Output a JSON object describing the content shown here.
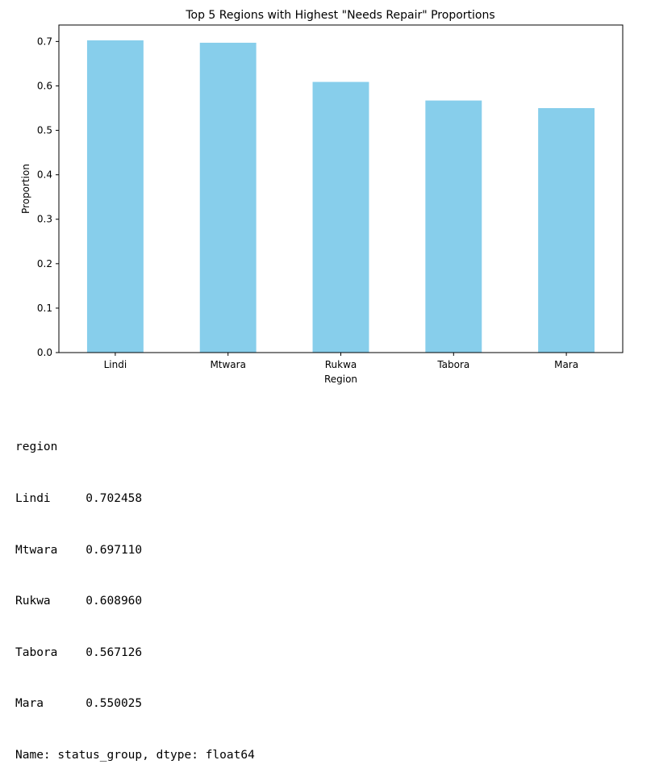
{
  "chart_data": {
    "type": "bar",
    "title": "Top 5 Regions with Highest \"Needs Repair\" Proportions",
    "xlabel": "Region",
    "ylabel": "Proportion",
    "categories": [
      "Lindi",
      "Mtwara",
      "Rukwa",
      "Tabora",
      "Mara"
    ],
    "values": [
      0.702458,
      0.69711,
      0.60896,
      0.567126,
      0.550025
    ],
    "ylim": [
      0,
      0.737
    ],
    "yticks": [
      "0.0",
      "0.1",
      "0.2",
      "0.3",
      "0.4",
      "0.5",
      "0.6",
      "0.7"
    ],
    "bar_color": "#87CEEB",
    "grid": false,
    "legend": "none"
  },
  "output": {
    "header": "region",
    "rows": [
      "Lindi     0.702458",
      "Mtwara    0.697110",
      "Rukwa     0.608960",
      "Tabora    0.567126",
      "Mara      0.550025"
    ],
    "footer": "Name: status_group, dtype: float64"
  }
}
